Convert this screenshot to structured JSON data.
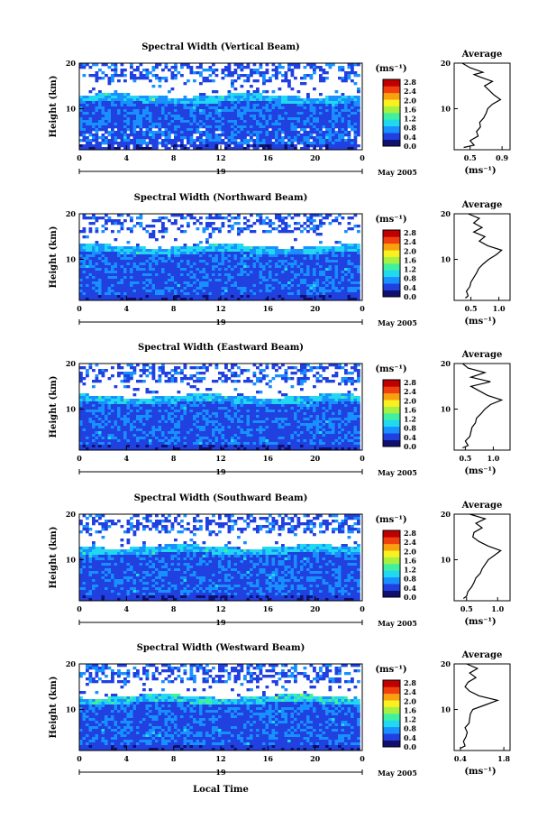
{
  "chart_data": [
    {
      "type": "heatmap",
      "title": "Spectral Width (Vertical Beam)",
      "ylabel": "Height (km)",
      "y_ticks": [
        "20",
        "10"
      ],
      "x_ticks": [
        "0",
        "4",
        "8",
        "12",
        "16",
        "20",
        "0"
      ],
      "date_day": "19",
      "date_month": "May 2005",
      "colorbar_unit": "(ms⁻¹)",
      "colorbar_ticks": [
        "0.0",
        "0.4",
        "0.8",
        "1.2",
        "1.6",
        "2.0",
        "2.4",
        "2.8"
      ],
      "avg_title": "Average",
      "avg_y_ticks": [
        "20",
        "10"
      ],
      "avg_x_ticks": [
        "0.5",
        "0.9"
      ],
      "avg_xlabel": "(ms⁻¹)",
      "avg_xlim": [
        0.3,
        1.0
      ],
      "avg_profile": [
        [
          0.42,
          1.5
        ],
        [
          0.55,
          2
        ],
        [
          0.5,
          3
        ],
        [
          0.6,
          4
        ],
        [
          0.58,
          5
        ],
        [
          0.63,
          6
        ],
        [
          0.62,
          7
        ],
        [
          0.67,
          8
        ],
        [
          0.7,
          9
        ],
        [
          0.72,
          10
        ],
        [
          0.78,
          11
        ],
        [
          0.88,
          12
        ],
        [
          0.8,
          13
        ],
        [
          0.74,
          14
        ],
        [
          0.68,
          15
        ],
        [
          0.78,
          16
        ],
        [
          0.62,
          17
        ],
        [
          0.55,
          17.5
        ],
        [
          0.66,
          18
        ],
        [
          0.5,
          19
        ],
        [
          0.4,
          20
        ]
      ]
    },
    {
      "type": "heatmap",
      "title": "Spectral Width (Northward Beam)",
      "ylabel": "Height (km)",
      "y_ticks": [
        "20",
        "10"
      ],
      "x_ticks": [
        "0",
        "4",
        "8",
        "12",
        "16",
        "20",
        "0"
      ],
      "date_day": "19",
      "date_month": "May 2005",
      "colorbar_unit": "(ms⁻¹)",
      "colorbar_ticks": [
        "0.0",
        "0.4",
        "0.8",
        "1.2",
        "1.6",
        "2.0",
        "2.4",
        "2.8"
      ],
      "avg_title": "Average",
      "avg_y_ticks": [
        "20",
        "10"
      ],
      "avg_x_ticks": [
        "0.5",
        "1.0"
      ],
      "avg_xlabel": "(ms⁻¹)",
      "avg_xlim": [
        0.2,
        1.2
      ],
      "avg_profile": [
        [
          0.4,
          1.5
        ],
        [
          0.45,
          2
        ],
        [
          0.42,
          3
        ],
        [
          0.48,
          4
        ],
        [
          0.5,
          5
        ],
        [
          0.55,
          6
        ],
        [
          0.6,
          7
        ],
        [
          0.64,
          8
        ],
        [
          0.72,
          9
        ],
        [
          0.82,
          10
        ],
        [
          0.95,
          11
        ],
        [
          1.05,
          12
        ],
        [
          0.8,
          13
        ],
        [
          0.65,
          14
        ],
        [
          0.75,
          15
        ],
        [
          0.55,
          16
        ],
        [
          0.7,
          17
        ],
        [
          0.55,
          18
        ],
        [
          0.65,
          19
        ],
        [
          0.45,
          20
        ]
      ]
    },
    {
      "type": "heatmap",
      "title": "Spectral Width (Eastward Beam)",
      "ylabel": "Height (km)",
      "y_ticks": [
        "20",
        "10"
      ],
      "x_ticks": [
        "0",
        "4",
        "8",
        "12",
        "16",
        "20",
        "0"
      ],
      "date_day": "19",
      "date_month": "May 2005",
      "colorbar_unit": "(ms⁻¹)",
      "colorbar_ticks": [
        "0.0",
        "0.4",
        "0.8",
        "1.2",
        "1.6",
        "2.0",
        "2.4",
        "2.8"
      ],
      "avg_title": "Average",
      "avg_y_ticks": [
        "20",
        "10"
      ],
      "avg_x_ticks": [
        "0.5",
        "1.0"
      ],
      "avg_xlabel": "(ms⁻¹)",
      "avg_xlim": [
        0.3,
        1.3
      ],
      "avg_profile": [
        [
          0.45,
          1.5
        ],
        [
          0.55,
          2
        ],
        [
          0.5,
          3
        ],
        [
          0.58,
          4
        ],
        [
          0.6,
          5
        ],
        [
          0.62,
          6
        ],
        [
          0.68,
          7
        ],
        [
          0.7,
          8
        ],
        [
          0.78,
          9
        ],
        [
          0.85,
          10
        ],
        [
          0.95,
          11
        ],
        [
          1.15,
          12
        ],
        [
          0.9,
          13
        ],
        [
          0.75,
          14
        ],
        [
          0.6,
          15
        ],
        [
          0.95,
          16
        ],
        [
          0.6,
          17
        ],
        [
          0.85,
          18
        ],
        [
          0.55,
          19
        ],
        [
          0.45,
          20
        ]
      ]
    },
    {
      "type": "heatmap",
      "title": "Spectral Width (Southward Beam)",
      "ylabel": "Height (km)",
      "y_ticks": [
        "20",
        "10"
      ],
      "x_ticks": [
        "0",
        "4",
        "8",
        "12",
        "16",
        "20",
        "0"
      ],
      "date_day": "19",
      "date_month": "May 2005",
      "colorbar_unit": "(ms⁻¹)",
      "colorbar_ticks": [
        "0.0",
        "0.4",
        "0.8",
        "1.2",
        "1.6",
        "2.0",
        "2.4",
        "2.8"
      ],
      "avg_title": "Average",
      "avg_y_ticks": [
        "20",
        "10"
      ],
      "avg_x_ticks": [
        "0.5",
        "1.0"
      ],
      "avg_xlabel": "(ms⁻¹)",
      "avg_xlim": [
        0.3,
        1.2
      ],
      "avg_profile": [
        [
          0.45,
          1.5
        ],
        [
          0.5,
          2
        ],
        [
          0.52,
          3
        ],
        [
          0.58,
          4
        ],
        [
          0.62,
          5
        ],
        [
          0.65,
          6
        ],
        [
          0.72,
          7
        ],
        [
          0.75,
          8
        ],
        [
          0.8,
          9
        ],
        [
          0.85,
          10
        ],
        [
          0.95,
          11
        ],
        [
          1.05,
          12
        ],
        [
          0.85,
          13
        ],
        [
          0.7,
          14
        ],
        [
          0.6,
          15
        ],
        [
          0.62,
          16
        ],
        [
          0.75,
          17
        ],
        [
          0.65,
          18
        ],
        [
          0.8,
          19
        ],
        [
          0.55,
          20
        ]
      ]
    },
    {
      "type": "heatmap",
      "title": "Spectral Width (Westward Beam)",
      "ylabel": "Height (km)",
      "y_ticks": [
        "20",
        "10"
      ],
      "x_ticks": [
        "0",
        "4",
        "8",
        "12",
        "16",
        "20",
        "0"
      ],
      "date_day": "19",
      "date_month": "May 2005",
      "colorbar_unit": "(ms⁻¹)",
      "colorbar_ticks": [
        "0.0",
        "0.4",
        "0.8",
        "1.2",
        "1.6",
        "2.0",
        "2.4",
        "2.8"
      ],
      "avg_title": "Average",
      "avg_y_ticks": [
        "20",
        "10"
      ],
      "avg_x_ticks": [
        "0.4",
        "1.8"
      ],
      "avg_xlabel": "(ms⁻¹)",
      "avg_xlim": [
        0.2,
        2.0
      ],
      "avg_profile": [
        [
          0.4,
          1.5
        ],
        [
          0.55,
          2
        ],
        [
          0.5,
          3
        ],
        [
          0.58,
          4
        ],
        [
          0.62,
          5
        ],
        [
          0.55,
          6
        ],
        [
          0.68,
          7
        ],
        [
          0.7,
          8
        ],
        [
          0.72,
          9
        ],
        [
          0.8,
          10
        ],
        [
          1.2,
          11
        ],
        [
          1.6,
          12
        ],
        [
          1.0,
          13
        ],
        [
          0.7,
          14
        ],
        [
          0.55,
          15
        ],
        [
          0.65,
          16
        ],
        [
          0.9,
          17
        ],
        [
          0.7,
          18
        ],
        [
          0.95,
          19
        ],
        [
          0.6,
          20
        ]
      ]
    }
  ],
  "x_axis_title": "Local Time",
  "colors": {
    "colormap": [
      "#10106e",
      "#2040e0",
      "#1890ff",
      "#20d8f0",
      "#40f0a0",
      "#a8f040",
      "#f8f020",
      "#f8a010",
      "#f04010",
      "#c00000"
    ],
    "background": "#ffffff",
    "no_data": "#ffffff"
  }
}
